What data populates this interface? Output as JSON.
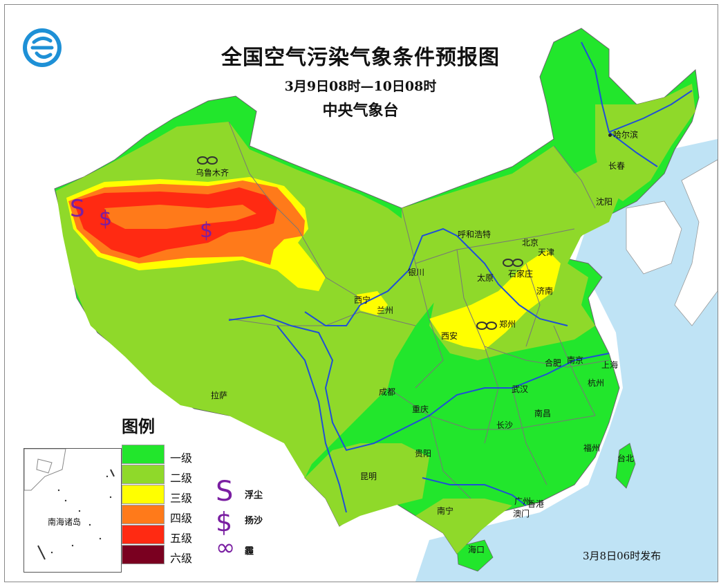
{
  "title": "全国空气污染气象条件预报图",
  "valid_period": "3月9日08时—10日08时",
  "issuer": "中央气象台",
  "issue_time": "3月8日06时发布",
  "legend": {
    "title": "图例",
    "levels": [
      {
        "label": "一级",
        "color": "#22e62c"
      },
      {
        "label": "二级",
        "color": "#8fd92a"
      },
      {
        "label": "三级",
        "color": "#ffff00"
      },
      {
        "label": "四级",
        "color": "#ff7a1a"
      },
      {
        "label": "五级",
        "color": "#ff2a12"
      },
      {
        "label": "六级",
        "color": "#7a0020"
      }
    ],
    "symbols": [
      {
        "glyph": "S",
        "label": "浮尘",
        "icon": "floating-dust-icon"
      },
      {
        "glyph": "$",
        "label": "扬沙",
        "icon": "blowing-sand-icon"
      },
      {
        "glyph": "∞",
        "label": "霾",
        "icon": "haze-icon"
      }
    ]
  },
  "inset": {
    "label": "南海诸岛"
  },
  "cities": [
    {
      "name": "哈尔滨"
    },
    {
      "name": "长春"
    },
    {
      "name": "沈阳"
    },
    {
      "name": "北京"
    },
    {
      "name": "天津"
    },
    {
      "name": "乌鲁木齐"
    },
    {
      "name": "呼和浩特"
    },
    {
      "name": "石家庄"
    },
    {
      "name": "太原"
    },
    {
      "name": "济南"
    },
    {
      "name": "银川"
    },
    {
      "name": "西宁"
    },
    {
      "name": "兰州"
    },
    {
      "name": "西安"
    },
    {
      "name": "郑州"
    },
    {
      "name": "合肥"
    },
    {
      "name": "南京"
    },
    {
      "name": "上海"
    },
    {
      "name": "杭州"
    },
    {
      "name": "武汉"
    },
    {
      "name": "成都"
    },
    {
      "name": "拉萨"
    },
    {
      "name": "重庆"
    },
    {
      "name": "长沙"
    },
    {
      "name": "南昌"
    },
    {
      "name": "贵阳"
    },
    {
      "name": "福州"
    },
    {
      "name": "台北"
    },
    {
      "name": "昆明"
    },
    {
      "name": "南宁"
    },
    {
      "name": "广州"
    },
    {
      "name": "香港"
    },
    {
      "name": "澳门"
    },
    {
      "name": "海口"
    }
  ],
  "colors": {
    "sea": "#bfe3f5",
    "river": "#1f4fd6",
    "boundary": "#777777",
    "symbol": "#7a1fa2"
  }
}
